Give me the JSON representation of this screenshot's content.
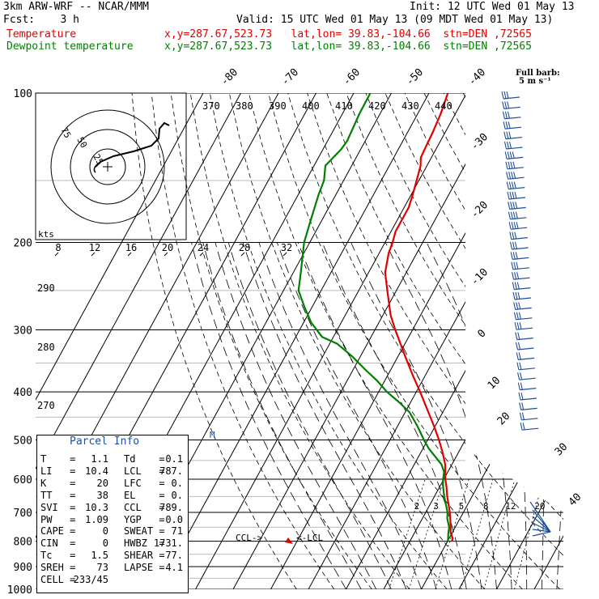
{
  "header": {
    "model": "3km ARW-WRF -- NCAR/MMM",
    "init": "Init: 12 UTC Wed 01 May 13",
    "fcst": "Fcst:    3 h",
    "valid": "Valid: 15 UTC Wed 01 May 13 (09 MDT Wed 01 May 13)",
    "temp_label": "Temperature",
    "temp_loc": "x,y=287.67,523.73   lat,lon= 39.83,-104.66  stn=DEN ,72565",
    "dew_label": "Dewpoint temperature",
    "dew_loc": "x,y=287.67,523.73   lat,lon= 39.83,-104.66  stn=DEN ,72565"
  },
  "barb_legend": {
    "line1": "Full barb:",
    "line2": "5 m s⁻¹"
  },
  "parcel_info": {
    "title": "Parcel Info",
    "rows": [
      {
        "k1": "T",
        "v1": "1.1",
        "k2": "Td",
        "v2": "0.1"
      },
      {
        "k1": "LI",
        "v1": "10.4",
        "k2": "LCL",
        "v2": "787."
      },
      {
        "k1": "K",
        "v1": "20",
        "k2": "LFC",
        "v2": "0."
      },
      {
        "k1": "TT",
        "v1": "38",
        "k2": "EL",
        "v2": "0."
      },
      {
        "k1": "SVI",
        "v1": "10.3",
        "k2": "CCL",
        "v2": "789."
      },
      {
        "k1": "PW",
        "v1": "1.09",
        "k2": "YGP",
        "v2": "0.0"
      },
      {
        "k1": "CAPE",
        "v1": "0",
        "k2": "SWEAT",
        "v2": "71"
      },
      {
        "k1": "CIN",
        "v1": "0",
        "k2": "HWBZ",
        "v2": "1731."
      },
      {
        "k1": "Tc",
        "v1": "1.5",
        "k2": "SHEAR",
        "v2": "77."
      },
      {
        "k1": "SREH",
        "v1": "73",
        "k2": "LAPSE",
        "v2": "4.1"
      },
      {
        "k1": "CELL",
        "v1": "233/45",
        "k2": "",
        "v2": ""
      }
    ]
  },
  "chart_data": {
    "type": "line",
    "subtype": "skew-T log-P sounding",
    "y_axis": {
      "scale": "log-pressure",
      "unit": "hPa",
      "range": [
        1000,
        100
      ],
      "ticks": [
        100,
        200,
        300,
        400,
        500,
        600,
        700,
        800,
        900,
        1000
      ]
    },
    "isotherm_labels": [
      -80,
      -70,
      -60,
      -50,
      -40,
      -30,
      -20,
      -10,
      0,
      10,
      20,
      30,
      40
    ],
    "theta_labels": [
      370,
      380,
      390,
      400,
      410,
      420,
      430,
      440
    ],
    "theta_e_labels": [
      290,
      280,
      270
    ],
    "mixing_ratio_labels": [
      "2",
      "3",
      "5",
      "8",
      "12",
      "20"
    ],
    "lcl_ccl_labels": [
      "CCL->",
      "<-LCL"
    ],
    "mark_labels": [
      "M"
    ],
    "series": [
      {
        "name": "Temperature",
        "color": "#e00000",
        "points": [
          [
            800,
            1.1
          ],
          [
            790,
            1.0
          ],
          [
            770,
            -0.4
          ],
          [
            750,
            -1.2
          ],
          [
            720,
            -2.6
          ],
          [
            700,
            -3.6
          ],
          [
            650,
            -6.6
          ],
          [
            620,
            -8.3
          ],
          [
            600,
            -9.6
          ],
          [
            560,
            -11.8
          ],
          [
            530,
            -14.2
          ],
          [
            500,
            -17.0
          ],
          [
            470,
            -20.2
          ],
          [
            440,
            -23.8
          ],
          [
            400,
            -29.0
          ],
          [
            370,
            -33.4
          ],
          [
            340,
            -38.0
          ],
          [
            300,
            -44.6
          ],
          [
            280,
            -48.0
          ],
          [
            250,
            -52.4
          ],
          [
            230,
            -55.6
          ],
          [
            210,
            -57.5
          ],
          [
            200,
            -58.0
          ],
          [
            190,
            -58.8
          ],
          [
            170,
            -58.8
          ],
          [
            160,
            -59.6
          ],
          [
            150,
            -60.6
          ],
          [
            140,
            -61.7
          ],
          [
            135,
            -62.8
          ],
          [
            130,
            -63.0
          ],
          [
            120,
            -63.3
          ],
          [
            110,
            -63.9
          ],
          [
            100,
            -65.0
          ]
        ]
      },
      {
        "name": "Dewpoint temperature",
        "color": "#008000",
        "points": [
          [
            800,
            0.1
          ],
          [
            770,
            -1.0
          ],
          [
            750,
            -1.6
          ],
          [
            720,
            -3.4
          ],
          [
            700,
            -4.2
          ],
          [
            650,
            -7.4
          ],
          [
            620,
            -9.2
          ],
          [
            600,
            -10.2
          ],
          [
            580,
            -11.0
          ],
          [
            560,
            -12.8
          ],
          [
            540,
            -15.6
          ],
          [
            520,
            -18.5
          ],
          [
            500,
            -21.0
          ],
          [
            470,
            -24.6
          ],
          [
            440,
            -28.8
          ],
          [
            420,
            -33.0
          ],
          [
            400,
            -37.8
          ],
          [
            380,
            -42.0
          ],
          [
            360,
            -47.0
          ],
          [
            340,
            -52.0
          ],
          [
            320,
            -58.0
          ],
          [
            310,
            -63.0
          ],
          [
            290,
            -68.0
          ],
          [
            270,
            -72.0
          ],
          [
            250,
            -76.0
          ],
          [
            230,
            -78.0
          ],
          [
            200,
            -81.5
          ],
          [
            180,
            -83.0
          ],
          [
            160,
            -84.6
          ],
          [
            150,
            -85.2
          ],
          [
            140,
            -87.0
          ],
          [
            130,
            -85.2
          ],
          [
            125,
            -84.8
          ],
          [
            120,
            -85.0
          ],
          [
            110,
            -85.5
          ],
          [
            100,
            -85.6
          ]
        ]
      }
    ],
    "hodograph": {
      "unit": "kts",
      "ring_labels": [
        "25",
        "50",
        "75"
      ],
      "speed_axis_labels": [
        8,
        12,
        16,
        20,
        24,
        28,
        32
      ],
      "storm_motion": "233/45"
    }
  }
}
